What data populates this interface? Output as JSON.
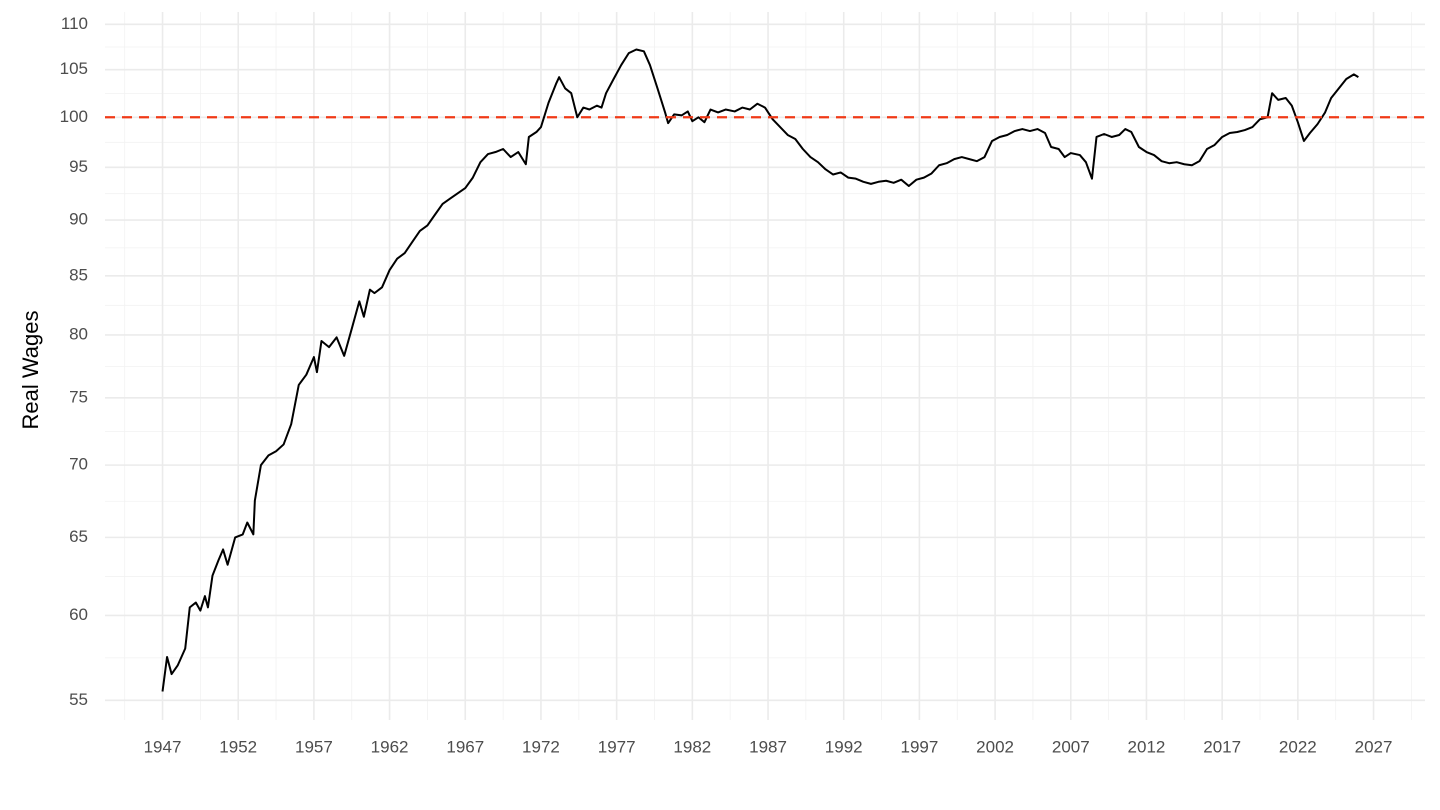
{
  "chart_data": {
    "type": "line",
    "y_label": "Real Wages",
    "log_y": true,
    "grid": true,
    "xlim": [
      1943.2,
      2030.4
    ],
    "ylim": [
      53.9,
      111.4
    ],
    "xticks": [
      1947,
      1952,
      1957,
      1962,
      1967,
      1972,
      1977,
      1982,
      1987,
      1992,
      1997,
      2002,
      2007,
      2012,
      2017,
      2022,
      2027
    ],
    "yticks": [
      55,
      60,
      65,
      70,
      75,
      80,
      85,
      90,
      95,
      100,
      105,
      110
    ],
    "hline": 100,
    "hline_color": "#f03a17",
    "x": [
      1947.0,
      1947.3,
      1947.6,
      1948.0,
      1948.5,
      1948.8,
      1949.2,
      1949.5,
      1949.8,
      1950.0,
      1950.3,
      1950.7,
      1951.0,
      1951.3,
      1951.8,
      1952.3,
      1952.6,
      1953.0,
      1953.1,
      1953.5,
      1954.0,
      1954.5,
      1955.0,
      1955.5,
      1956.0,
      1956.5,
      1957.0,
      1957.2,
      1957.5,
      1958.0,
      1958.5,
      1959.0,
      1959.5,
      1960.0,
      1960.3,
      1960.7,
      1961.0,
      1961.5,
      1962.0,
      1962.5,
      1963.0,
      1963.5,
      1964.0,
      1964.5,
      1965.0,
      1965.5,
      1966.0,
      1966.5,
      1967.0,
      1967.5,
      1968.0,
      1968.5,
      1969.0,
      1969.5,
      1970.0,
      1970.5,
      1971.0,
      1971.2,
      1971.7,
      1972.0,
      1972.5,
      1973.0,
      1973.2,
      1973.6,
      1974.0,
      1974.4,
      1974.8,
      1975.2,
      1975.7,
      1976.0,
      1976.3,
      1976.8,
      1977.3,
      1977.8,
      1978.3,
      1978.8,
      1979.2,
      1979.7,
      1980.2,
      1980.4,
      1980.8,
      1981.3,
      1981.7,
      1982.0,
      1982.4,
      1982.8,
      1983.2,
      1983.7,
      1984.2,
      1984.8,
      1985.3,
      1985.8,
      1986.3,
      1986.8,
      1987.3,
      1987.8,
      1988.3,
      1988.8,
      1989.3,
      1989.8,
      1990.3,
      1990.8,
      1991.3,
      1991.8,
      1992.3,
      1992.8,
      1993.3,
      1993.8,
      1994.3,
      1994.8,
      1995.3,
      1995.8,
      1996.3,
      1996.8,
      1997.3,
      1997.8,
      1998.3,
      1998.8,
      1999.3,
      1999.8,
      2000.3,
      2000.8,
      2001.3,
      2001.8,
      2002.3,
      2002.8,
      2003.3,
      2003.8,
      2004.3,
      2004.8,
      2005.3,
      2005.7,
      2006.2,
      2006.6,
      2007.0,
      2007.6,
      2008.0,
      2008.4,
      2008.7,
      2009.2,
      2009.7,
      2010.2,
      2010.6,
      2011.0,
      2011.5,
      2012.0,
      2012.5,
      2013.0,
      2013.5,
      2014.0,
      2014.5,
      2015.0,
      2015.5,
      2016.0,
      2016.5,
      2017.0,
      2017.5,
      2018.0,
      2018.5,
      2019.0,
      2019.5,
      2020.0,
      2020.3,
      2020.7,
      2021.2,
      2021.6,
      2022.0,
      2022.4,
      2022.8,
      2023.3,
      2023.8,
      2024.2,
      2024.7,
      2025.2,
      2025.7,
      2026.0
    ],
    "series": [
      {
        "name": "Real Wages",
        "color": "#000000",
        "values": [
          55.5,
          57.5,
          56.5,
          57,
          58,
          60.5,
          60.8,
          60.3,
          61.2,
          60.5,
          62.5,
          63.5,
          64.2,
          63.2,
          65,
          65.2,
          66,
          65.2,
          67.5,
          70,
          70.7,
          71,
          71.5,
          73,
          76,
          76.8,
          78.2,
          77,
          79.5,
          79,
          79.8,
          78.3,
          80.5,
          82.8,
          81.5,
          83.8,
          83.5,
          84,
          85.5,
          86.5,
          87,
          88,
          89,
          89.5,
          90.5,
          91.5,
          92,
          92.5,
          93,
          94,
          95.5,
          96.3,
          96.5,
          96.8,
          96,
          96.5,
          95.3,
          98,
          98.5,
          99,
          101.5,
          103.5,
          104.2,
          103,
          102.5,
          100,
          101,
          100.8,
          101.2,
          101,
          102.5,
          104,
          105.5,
          106.8,
          107.2,
          107,
          105.5,
          103,
          100.5,
          99.4,
          100.3,
          100.2,
          100.6,
          99.6,
          100,
          99.5,
          100.8,
          100.5,
          100.8,
          100.6,
          101,
          100.8,
          101.4,
          101,
          99.8,
          99,
          98.2,
          97.8,
          96.8,
          96,
          95.5,
          94.8,
          94.3,
          94.5,
          94,
          93.9,
          93.6,
          93.4,
          93.6,
          93.7,
          93.5,
          93.8,
          93.2,
          93.8,
          94,
          94.4,
          95.2,
          95.4,
          95.8,
          96,
          95.8,
          95.6,
          96,
          97.6,
          98,
          98.2,
          98.6,
          98.8,
          98.6,
          98.8,
          98.4,
          97,
          96.8,
          96,
          96.4,
          96.2,
          95.5,
          93.9,
          98,
          98.3,
          98,
          98.2,
          98.8,
          98.5,
          97,
          96.5,
          96.2,
          95.6,
          95.4,
          95.5,
          95.3,
          95.2,
          95.6,
          96.8,
          97.2,
          98,
          98.4,
          98.5,
          98.7,
          99,
          99.8,
          100,
          102.5,
          101.8,
          102,
          101.2,
          99.5,
          97.6,
          98.4,
          99.3,
          100.5,
          102,
          103,
          104,
          104.5,
          104.2
        ]
      }
    ]
  }
}
